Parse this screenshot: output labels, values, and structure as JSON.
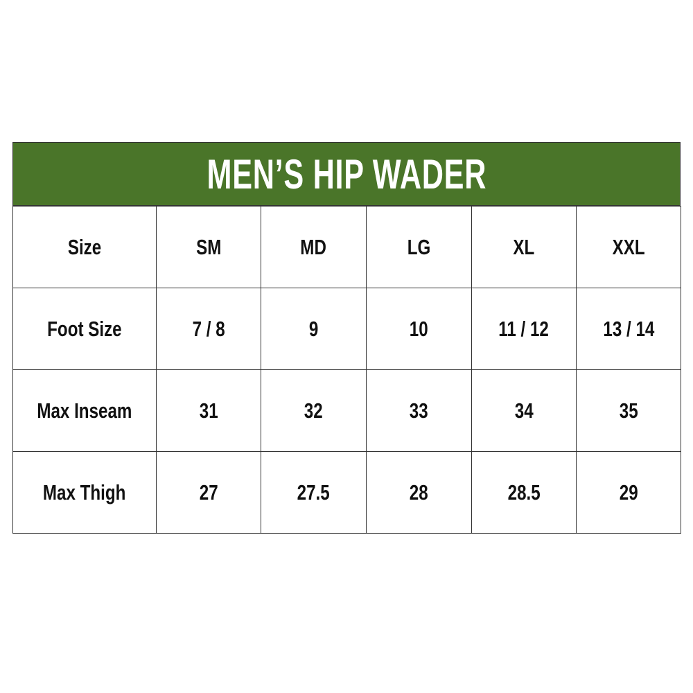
{
  "title": "MEN’S HIP WADER",
  "accent_color": "#4a7529",
  "rows": [
    {
      "label": "Size",
      "values": [
        "SM",
        "MD",
        "LG",
        "XL",
        "XXL"
      ]
    },
    {
      "label": "Foot Size",
      "values": [
        "7 / 8",
        "9",
        "10",
        "11 / 12",
        "13 / 14"
      ]
    },
    {
      "label": "Max Inseam",
      "values": [
        "31",
        "32",
        "33",
        "34",
        "35"
      ]
    },
    {
      "label": "Max Thigh",
      "values": [
        "27",
        "27.5",
        "28",
        "28.5",
        "29"
      ]
    }
  ]
}
